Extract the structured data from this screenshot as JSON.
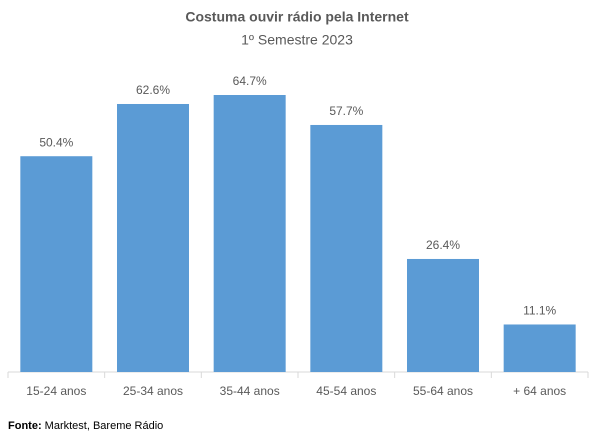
{
  "chart_data": {
    "type": "bar",
    "title": "Costuma ouvir rádio pela Internet",
    "subtitle": "1º Semestre 2023",
    "categories": [
      "15-24 anos",
      "25-34 anos",
      "35-44 anos",
      "45-54 anos",
      "55-64 anos",
      "+ 64 anos"
    ],
    "values": [
      50.4,
      62.6,
      64.7,
      57.7,
      26.4,
      11.1
    ],
    "value_labels": [
      "50.4%",
      "62.6%",
      "64.7%",
      "57.7%",
      "26.4%",
      "11.1%"
    ],
    "color": "#5b9bd5",
    "source_label": "Fonte:",
    "source": "Marktest, Bareme Rádio"
  }
}
